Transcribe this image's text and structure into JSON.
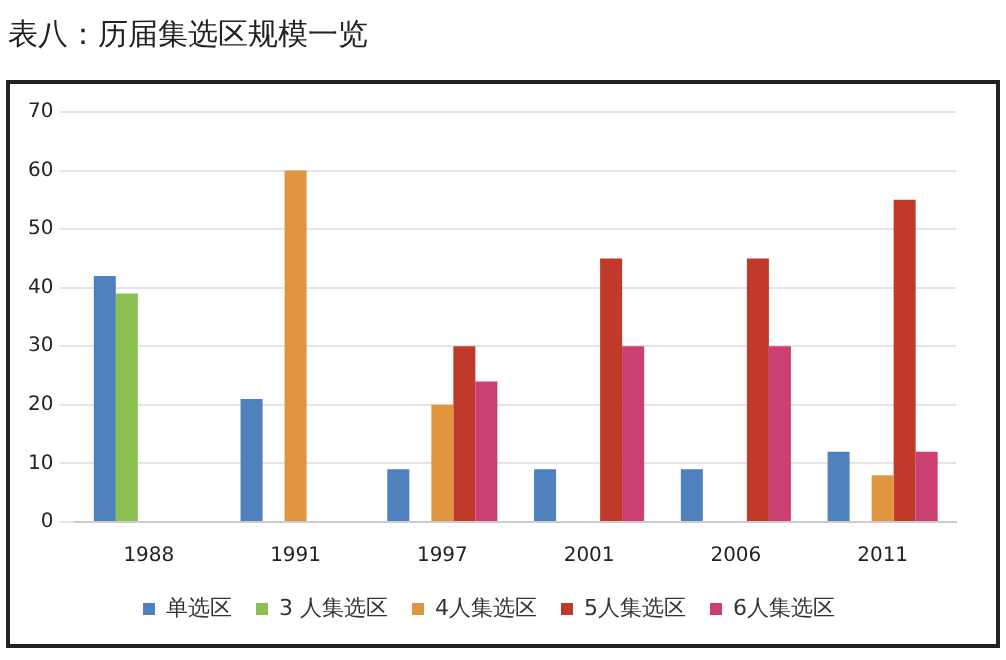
{
  "chart_data": {
    "type": "bar",
    "title": "表八：历届集选区规模一览",
    "categories": [
      "1988",
      "1991",
      "1997",
      "2001",
      "2006",
      "2011"
    ],
    "series": [
      {
        "name": "单选区",
        "color": "#4f81bd",
        "values": [
          42,
          21,
          9,
          9,
          9,
          12
        ]
      },
      {
        "name": "3 人集选区",
        "color": "#8cc152",
        "values": [
          39,
          null,
          null,
          null,
          null,
          null
        ]
      },
      {
        "name": "4人集选区",
        "color": "#e0963c",
        "values": [
          null,
          60,
          20,
          null,
          null,
          8
        ]
      },
      {
        "name": "5人集选区",
        "color": "#c0392b",
        "values": [
          null,
          null,
          30,
          45,
          45,
          55
        ]
      },
      {
        "name": "6人集选区",
        "color": "#cc3f72",
        "values": [
          null,
          null,
          24,
          30,
          30,
          12
        ]
      }
    ],
    "ylim": [
      0,
      70
    ],
    "yticks": [
      0,
      10,
      20,
      30,
      40,
      50,
      60,
      70
    ],
    "grid": "y",
    "legend": "bottom"
  }
}
